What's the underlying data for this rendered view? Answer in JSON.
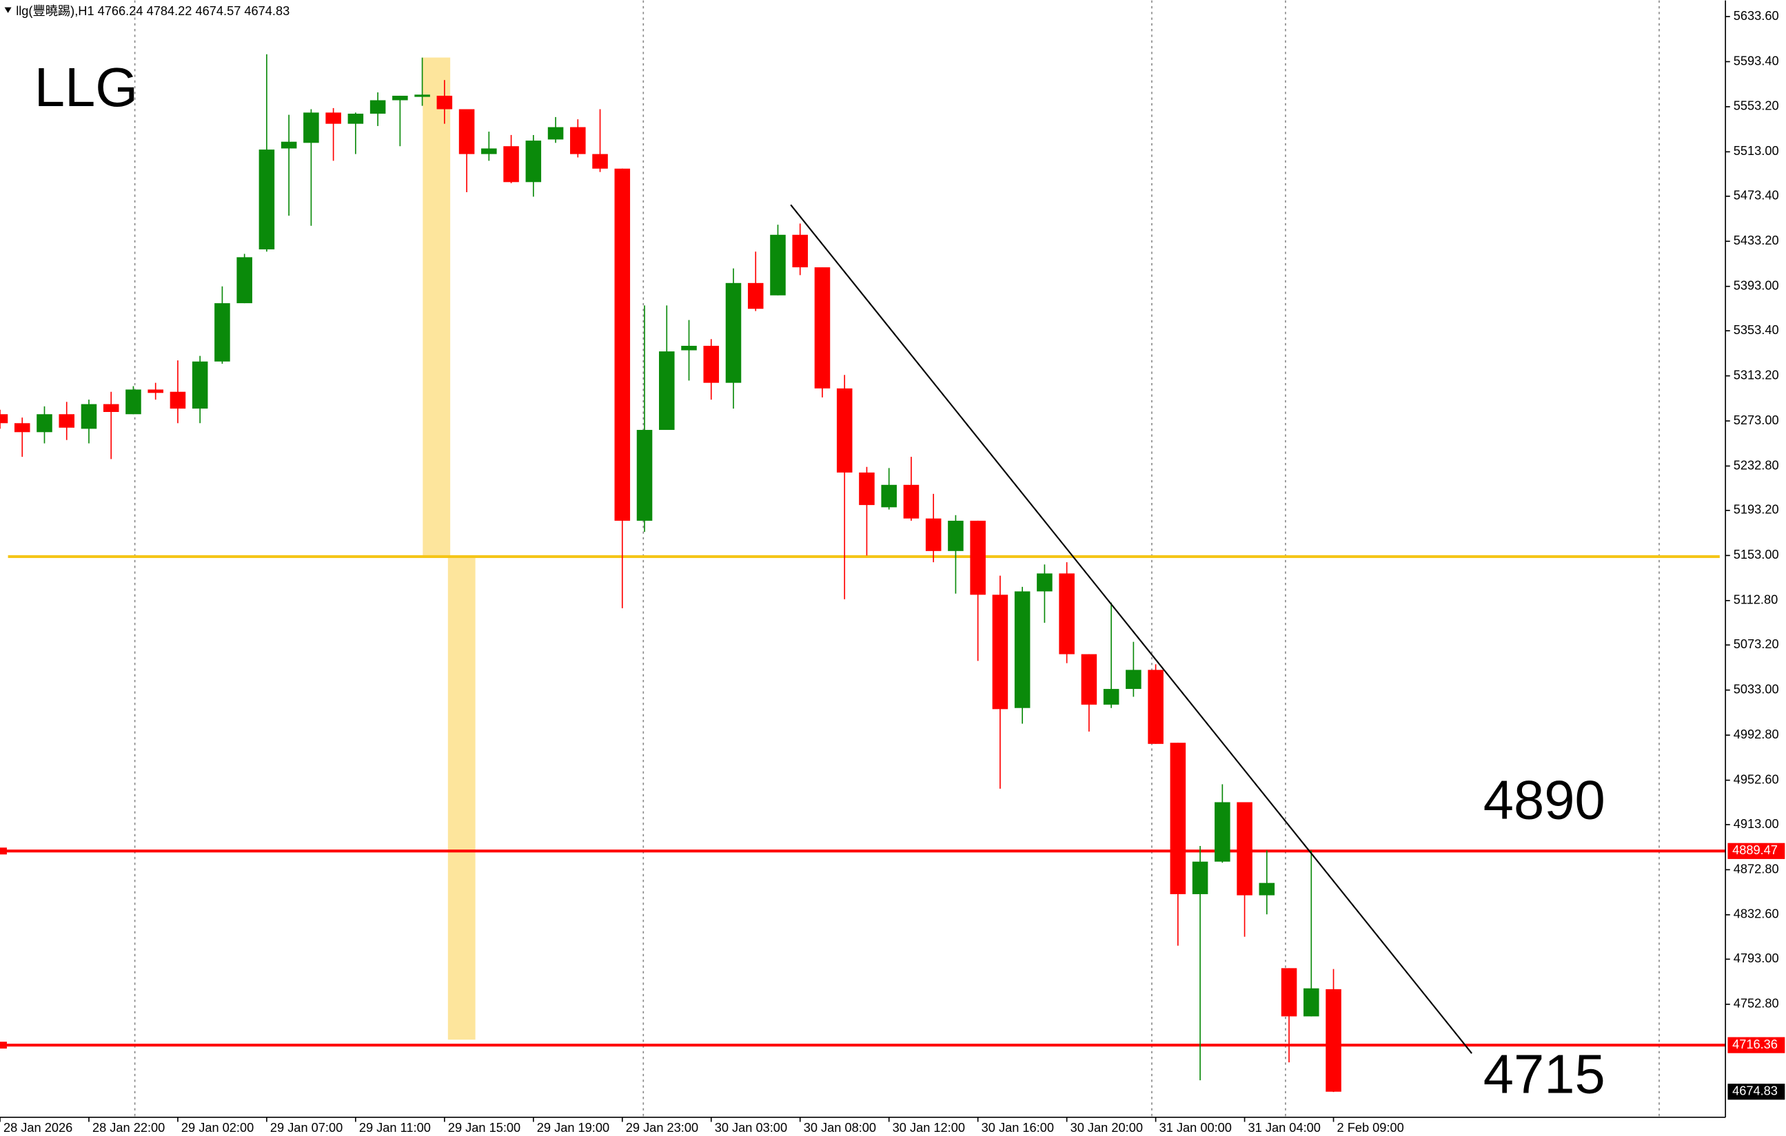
{
  "chart_data": {
    "type": "candlestick",
    "header": "llg(豐曉踢),H1",
    "title": "LLG",
    "annotations": [
      "4890",
      "4715"
    ],
    "categories": [
      "28 Jan 2026",
      null,
      null,
      null,
      "28 Jan 22:00",
      null,
      null,
      null,
      "29 Jan 02:00",
      null,
      null,
      null,
      "29 Jan 07:00",
      null,
      null,
      null,
      "29 Jan 11:00",
      null,
      null,
      null,
      "29 Jan 15:00",
      null,
      null,
      null,
      "29 Jan 19:00",
      null,
      null,
      null,
      "29 Jan 23:00",
      null,
      null,
      null,
      "30 Jan 03:00",
      null,
      null,
      null,
      "30 Jan 08:00",
      null,
      null,
      null,
      "30 Jan 12:00",
      null,
      null,
      null,
      "30 Jan 16:00",
      null,
      null,
      null,
      "30 Jan 20:00",
      null,
      null,
      null,
      "31 Jan 00:00",
      null,
      null,
      null,
      "31 Jan 04:00",
      null,
      null,
      null,
      "2 Feb 09:00"
    ],
    "open": [
      5279,
      5271,
      5263,
      5279,
      5266,
      5288,
      5279,
      5301,
      5299,
      5284,
      5326,
      5378,
      5426,
      5516,
      5521,
      5548,
      5538,
      5547,
      5559,
      5562,
      5563,
      5551,
      5511,
      5518,
      5486,
      5524,
      5535,
      5511,
      5498,
      5184,
      5265,
      5336,
      5340,
      5307,
      5396,
      5385,
      5439,
      5410,
      5302,
      5227,
      5196,
      5216,
      5186,
      5157,
      5184,
      5118,
      5017,
      5121,
      5137,
      5065,
      5020,
      5034,
      5051,
      4986,
      4851,
      4880,
      4933,
      4850,
      4785,
      4742,
      4766.24
    ],
    "high": [
      5283,
      5276,
      5286,
      5290,
      5292,
      5299,
      5304,
      5307,
      5327,
      5331,
      5393,
      5422,
      5600,
      5546,
      5551,
      5552,
      5548,
      5566,
      5563,
      5597,
      5577,
      5551,
      5531,
      5528,
      5528,
      5544,
      5542,
      5551,
      5498,
      5376,
      5376,
      5363,
      5346,
      5409,
      5424,
      5448,
      5449,
      5410,
      5314,
      5232,
      5231,
      5241,
      5208,
      5189,
      5184,
      5135,
      5125,
      5145,
      5147,
      5065,
      5111,
      5076,
      5056,
      4986,
      4894,
      4949,
      4933,
      4890,
      4785,
      4890,
      4784.22
    ],
    "low": [
      5266,
      5241,
      5253,
      5256,
      5253,
      5239,
      5279,
      5292,
      5271,
      5271,
      5324,
      5378,
      5424,
      5456,
      5447,
      5505,
      5511,
      5536,
      5518,
      5554,
      5538,
      5477,
      5505,
      5485,
      5473,
      5521,
      5508,
      5495,
      5106,
      5174,
      5265,
      5309,
      5292,
      5284,
      5371,
      5385,
      5403,
      5294,
      5114,
      5153,
      5194,
      5184,
      5147,
      5119,
      5059,
      4945,
      5003,
      5093,
      5057,
      4996,
      5017,
      5027,
      4985,
      4805,
      4685,
      4879,
      4813,
      4833,
      4701,
      4742,
      4674.57
    ],
    "close": [
      5271,
      5263,
      5279,
      5267,
      5288,
      5281,
      5301,
      5298,
      5284,
      5326,
      5378,
      5419,
      5515,
      5522,
      5548,
      5538,
      5547,
      5559,
      5563,
      5564,
      5551,
      5511,
      5516,
      5486,
      5523,
      5535,
      5511,
      5498,
      5184,
      5265,
      5335,
      5340,
      5307,
      5396,
      5373,
      5439,
      5410,
      5302,
      5227,
      5198,
      5216,
      5186,
      5157,
      5184,
      5118,
      5016,
      5121,
      5137,
      5065,
      5020,
      5034,
      5051,
      4985,
      4851,
      4880,
      4933,
      4850,
      4861,
      4742,
      4767,
      4674.83
    ],
    "up_color": "#0a8a0a",
    "down_color": "#ff0000",
    "levels": [
      {
        "value": 4889.47,
        "color": "#ff0000"
      },
      {
        "value": 4716.36,
        "color": "#ff0000"
      }
    ],
    "ylim": [
      4652,
      5648
    ],
    "yticks": [
      {
        "value": 5633.6,
        "label": "5633.60"
      },
      {
        "value": 5593.4,
        "label": "5593.40"
      },
      {
        "value": 5553.2,
        "label": "5553.20"
      },
      {
        "value": 5513,
        "label": "5513.00"
      },
      {
        "value": 5473.4,
        "label": "5473.40"
      },
      {
        "value": 5433.2,
        "label": "5433.20"
      },
      {
        "value": 5393,
        "label": "5393.00"
      },
      {
        "value": 5353.4,
        "label": "5353.40"
      },
      {
        "value": 5313.2,
        "label": "5313.20"
      },
      {
        "value": 5273,
        "label": "5273.00"
      },
      {
        "value": 5232.8,
        "label": "5232.80"
      },
      {
        "value": 5193.2,
        "label": "5193.20"
      },
      {
        "value": 5153,
        "label": "5153.00"
      },
      {
        "value": 5112.8,
        "label": "5112.80"
      },
      {
        "value": 5073.2,
        "label": "5073.20"
      },
      {
        "value": 5033,
        "label": "5033.00"
      },
      {
        "value": 4992.8,
        "label": "4992.80"
      },
      {
        "value": 4952.6,
        "label": "4952.60"
      },
      {
        "value": 4913,
        "label": "4913.00"
      },
      {
        "value": 4872.8,
        "label": "4872.80"
      },
      {
        "value": 4832.6,
        "label": "4832.60"
      },
      {
        "value": 4793,
        "label": "4793.00"
      },
      {
        "value": 4752.8,
        "label": "4752.80"
      }
    ],
    "grid": false
  }
}
